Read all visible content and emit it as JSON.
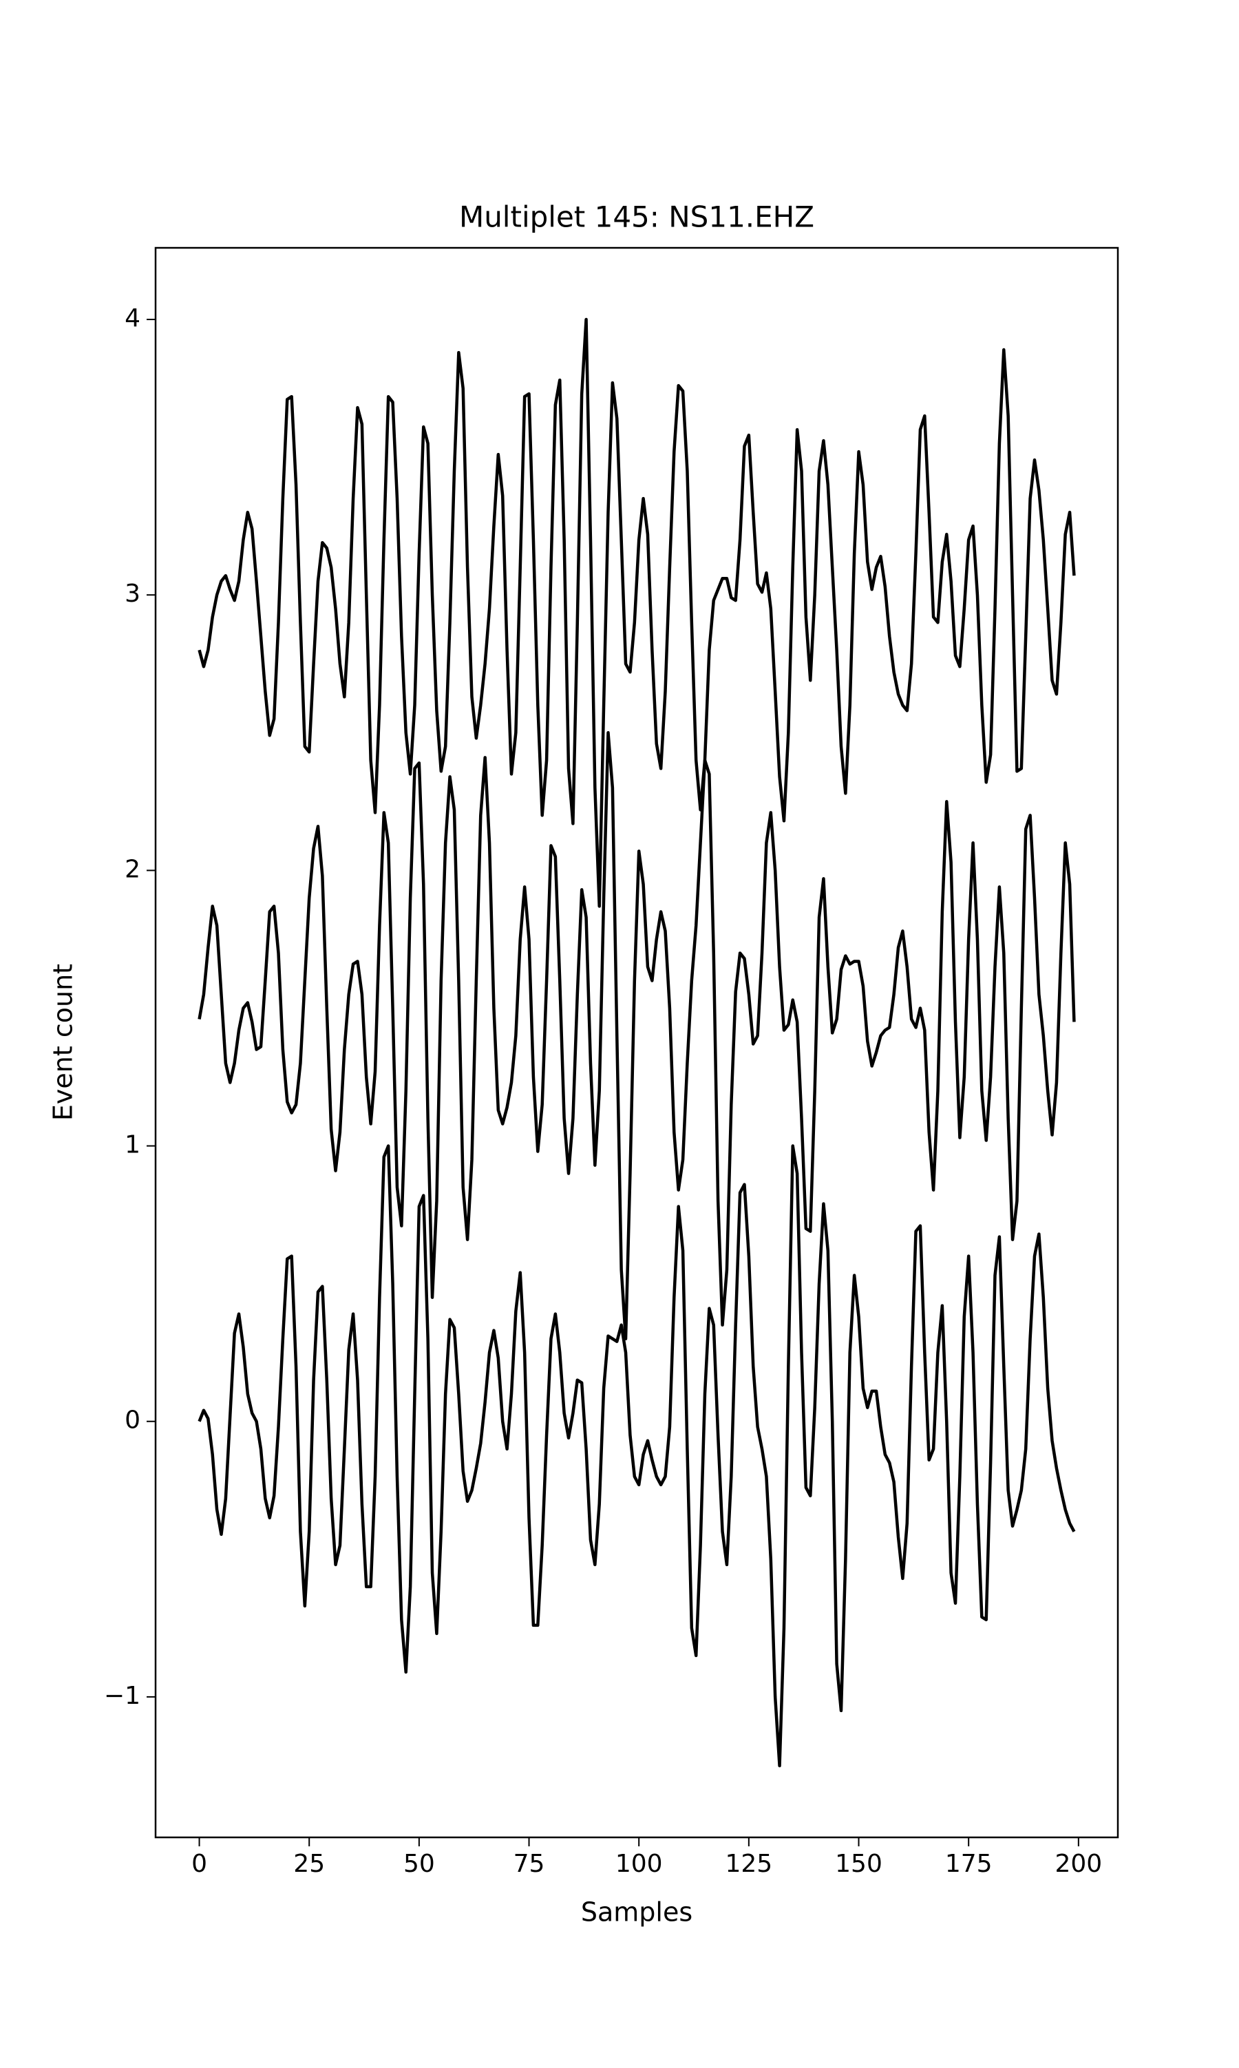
{
  "chart_data": {
    "type": "line",
    "title": "Multiplet 145: NS11.EHZ",
    "x_label": "Samples",
    "y_label": "Event count",
    "x": [
      0,
      1,
      2,
      3,
      4,
      5,
      6,
      7,
      8,
      9,
      10,
      11,
      12,
      13,
      14,
      15,
      16,
      17,
      18,
      19,
      20,
      21,
      22,
      23,
      24,
      25,
      26,
      27,
      28,
      29,
      30,
      31,
      32,
      33,
      34,
      35,
      36,
      37,
      38,
      39,
      40,
      41,
      42,
      43,
      44,
      45,
      46,
      47,
      48,
      49,
      50,
      51,
      52,
      53,
      54,
      55,
      56,
      57,
      58,
      59,
      60,
      61,
      62,
      63,
      64,
      65,
      66,
      67,
      68,
      69,
      70,
      71,
      72,
      73,
      74,
      75,
      76,
      77,
      78,
      79,
      80,
      81,
      82,
      83,
      84,
      85,
      86,
      87,
      88,
      89,
      90,
      91,
      92,
      93,
      94,
      95,
      96,
      97,
      98,
      99,
      100,
      101,
      102,
      103,
      104,
      105,
      106,
      107,
      108,
      109,
      110,
      111,
      112,
      113,
      114,
      115,
      116,
      117,
      118,
      119,
      120,
      121,
      122,
      123,
      124,
      125,
      126,
      127,
      128,
      129,
      130,
      131,
      132,
      133,
      134,
      135,
      136,
      137,
      138,
      139,
      140,
      141,
      142,
      143,
      144,
      145,
      146,
      147,
      148,
      149,
      150,
      151,
      152,
      153,
      154,
      155,
      156,
      157,
      158,
      159,
      160,
      161,
      162,
      163,
      164,
      165,
      166,
      167,
      168,
      169,
      170,
      171,
      172,
      173,
      174,
      175,
      176,
      177,
      178,
      179,
      180,
      181,
      182,
      183,
      184,
      185,
      186,
      187,
      188,
      189,
      190,
      191,
      192,
      193,
      194,
      195,
      196,
      197,
      198,
      199
    ],
    "series": [
      {
        "color": "#000000",
        "values": [
          0.0,
          0.04,
          0.01,
          -0.12,
          -0.32,
          -0.41,
          -0.28,
          0.02,
          0.32,
          0.39,
          0.27,
          0.1,
          0.03,
          0.0,
          -0.1,
          -0.28,
          -0.35,
          -0.27,
          -0.02,
          0.3,
          0.59,
          0.6,
          0.2,
          -0.4,
          -0.67,
          -0.4,
          0.15,
          0.47,
          0.49,
          0.15,
          -0.28,
          -0.52,
          -0.45,
          -0.1,
          0.26,
          0.39,
          0.15,
          -0.3,
          -0.6,
          -0.6,
          -0.2,
          0.45,
          0.96,
          1.0,
          0.5,
          -0.2,
          -0.72,
          -0.91,
          -0.6,
          0.1,
          0.78,
          0.82,
          0.3,
          -0.55,
          -0.77,
          -0.4,
          0.1,
          0.37,
          0.34,
          0.1,
          -0.18,
          -0.29,
          -0.25,
          -0.17,
          -0.08,
          0.07,
          0.25,
          0.33,
          0.23,
          0.0,
          -0.1,
          0.1,
          0.4,
          0.54,
          0.25,
          -0.35,
          -0.74,
          -0.74,
          -0.45,
          -0.05,
          0.3,
          0.39,
          0.25,
          0.03,
          -0.06,
          0.03,
          0.15,
          0.14,
          -0.1,
          -0.43,
          -0.52,
          -0.3,
          0.12,
          0.31,
          0.3,
          0.29,
          0.35,
          0.25,
          -0.05,
          -0.2,
          -0.23,
          -0.12,
          -0.07,
          -0.14,
          -0.2,
          -0.23,
          -0.2,
          -0.02,
          0.45,
          0.78,
          0.62,
          -0.1,
          -0.75,
          -0.85,
          -0.45,
          0.1,
          0.41,
          0.35,
          -0.05,
          -0.4,
          -0.52,
          -0.2,
          0.35,
          0.83,
          0.86,
          0.6,
          0.2,
          -0.02,
          -0.1,
          -0.2,
          -0.5,
          -1.0,
          -1.25,
          -0.75,
          0.2,
          1.0,
          0.9,
          0.25,
          -0.24,
          -0.27,
          0.05,
          0.5,
          0.79,
          0.62,
          0.0,
          -0.88,
          -1.05,
          -0.5,
          0.25,
          0.53,
          0.38,
          0.12,
          0.05,
          0.11,
          0.11,
          -0.02,
          -0.12,
          -0.15,
          -0.22,
          -0.42,
          -0.57,
          -0.37,
          0.2,
          0.69,
          0.71,
          0.25,
          -0.14,
          -0.1,
          0.25,
          0.42,
          0.0,
          -0.55,
          -0.66,
          -0.2,
          0.38,
          0.6,
          0.25,
          -0.3,
          -0.71,
          -0.72,
          -0.15,
          0.53,
          0.67,
          0.2,
          -0.25,
          -0.38,
          -0.32,
          -0.25,
          -0.1,
          0.3,
          0.6,
          0.68,
          0.45,
          0.12,
          -0.07,
          -0.17,
          -0.25,
          -0.32,
          -0.37,
          -0.4
        ]
      },
      {
        "color": "#000000",
        "values": [
          1.46,
          1.55,
          1.72,
          1.87,
          1.8,
          1.55,
          1.3,
          1.23,
          1.3,
          1.42,
          1.5,
          1.52,
          1.45,
          1.35,
          1.36,
          1.6,
          1.85,
          1.87,
          1.7,
          1.35,
          1.16,
          1.12,
          1.15,
          1.3,
          1.6,
          1.9,
          2.08,
          2.16,
          1.98,
          1.5,
          1.06,
          0.91,
          1.05,
          1.35,
          1.55,
          1.66,
          1.67,
          1.55,
          1.25,
          1.08,
          1.27,
          1.8,
          2.21,
          2.1,
          1.5,
          0.85,
          0.71,
          1.2,
          1.9,
          2.37,
          2.39,
          1.95,
          1.1,
          0.45,
          0.8,
          1.6,
          2.1,
          2.34,
          2.22,
          1.6,
          0.85,
          0.66,
          0.95,
          1.6,
          2.2,
          2.41,
          2.1,
          1.5,
          1.13,
          1.08,
          1.14,
          1.23,
          1.4,
          1.75,
          1.94,
          1.75,
          1.25,
          0.98,
          1.15,
          1.6,
          2.09,
          2.05,
          1.6,
          1.1,
          0.9,
          1.1,
          1.55,
          1.93,
          1.83,
          1.3,
          0.93,
          1.2,
          1.9,
          2.5,
          2.3,
          1.4,
          0.55,
          0.3,
          0.9,
          1.6,
          2.07,
          1.95,
          1.65,
          1.6,
          1.75,
          1.85,
          1.78,
          1.5,
          1.05,
          0.84,
          0.95,
          1.3,
          1.6,
          1.8,
          2.1,
          2.4,
          2.35,
          1.7,
          0.8,
          0.35,
          0.55,
          1.15,
          1.56,
          1.7,
          1.68,
          1.55,
          1.37,
          1.4,
          1.7,
          2.1,
          2.21,
          2.0,
          1.65,
          1.42,
          1.44,
          1.53,
          1.45,
          1.1,
          0.7,
          0.69,
          1.2,
          1.83,
          1.97,
          1.65,
          1.41,
          1.46,
          1.64,
          1.69,
          1.66,
          1.67,
          1.67,
          1.58,
          1.38,
          1.29,
          1.34,
          1.4,
          1.42,
          1.43,
          1.55,
          1.72,
          1.78,
          1.65,
          1.46,
          1.43,
          1.5,
          1.42,
          1.05,
          0.84,
          1.2,
          1.85,
          2.25,
          2.03,
          1.45,
          1.03,
          1.25,
          1.75,
          2.1,
          1.75,
          1.2,
          1.02,
          1.25,
          1.65,
          1.94,
          1.7,
          1.1,
          0.66,
          0.8,
          1.5,
          2.15,
          2.2,
          1.9,
          1.55,
          1.4,
          1.2,
          1.04,
          1.23,
          1.7,
          2.1,
          1.95,
          1.45
        ]
      },
      {
        "color": "#000000",
        "values": [
          2.8,
          2.74,
          2.8,
          2.92,
          3.0,
          3.05,
          3.07,
          3.02,
          2.98,
          3.05,
          3.2,
          3.3,
          3.24,
          3.05,
          2.85,
          2.65,
          2.49,
          2.55,
          2.9,
          3.35,
          3.71,
          3.72,
          3.4,
          2.9,
          2.45,
          2.43,
          2.75,
          3.05,
          3.19,
          3.17,
          3.1,
          2.95,
          2.75,
          2.63,
          2.9,
          3.35,
          3.68,
          3.62,
          3.0,
          2.4,
          2.21,
          2.6,
          3.2,
          3.72,
          3.7,
          3.35,
          2.85,
          2.5,
          2.35,
          2.6,
          3.15,
          3.61,
          3.55,
          3.0,
          2.58,
          2.36,
          2.45,
          2.9,
          3.45,
          3.88,
          3.75,
          3.1,
          2.63,
          2.48,
          2.6,
          2.75,
          2.95,
          3.25,
          3.51,
          3.36,
          2.8,
          2.35,
          2.5,
          3.1,
          3.72,
          3.73,
          3.2,
          2.6,
          2.2,
          2.4,
          3.1,
          3.69,
          3.78,
          3.2,
          2.37,
          2.17,
          2.9,
          3.73,
          4.0,
          3.2,
          2.3,
          1.87,
          2.6,
          3.3,
          3.77,
          3.64,
          3.2,
          2.75,
          2.72,
          2.9,
          3.2,
          3.35,
          3.22,
          2.8,
          2.46,
          2.37,
          2.65,
          3.1,
          3.52,
          3.76,
          3.74,
          3.45,
          2.9,
          2.4,
          2.22,
          2.4,
          2.8,
          2.98,
          3.02,
          3.06,
          3.06,
          2.99,
          2.98,
          3.2,
          3.54,
          3.58,
          3.3,
          3.04,
          3.01,
          3.08,
          2.95,
          2.65,
          2.34,
          2.18,
          2.5,
          3.1,
          3.6,
          3.45,
          2.92,
          2.69,
          3.0,
          3.45,
          3.56,
          3.4,
          3.1,
          2.8,
          2.45,
          2.28,
          2.6,
          3.15,
          3.52,
          3.4,
          3.12,
          3.02,
          3.1,
          3.14,
          3.03,
          2.85,
          2.72,
          2.64,
          2.6,
          2.58,
          2.75,
          3.15,
          3.6,
          3.65,
          3.3,
          2.92,
          2.9,
          3.12,
          3.22,
          3.05,
          2.78,
          2.74,
          2.95,
          3.2,
          3.25,
          3.0,
          2.6,
          2.32,
          2.42,
          2.95,
          3.55,
          3.89,
          3.65,
          3.0,
          2.36,
          2.37,
          2.85,
          3.35,
          3.49,
          3.38,
          3.2,
          2.95,
          2.69,
          2.64,
          2.9,
          3.22,
          3.3,
          3.07
        ]
      }
    ],
    "xlim": [
      -9.95,
      208.95
    ],
    "ylim": [
      -1.51,
      4.26
    ],
    "xticks": [
      0,
      25,
      50,
      75,
      100,
      125,
      150,
      175,
      200
    ],
    "yticks": [
      {
        "value": -1,
        "label": "−1"
      },
      0,
      1,
      2,
      3,
      4
    ]
  }
}
